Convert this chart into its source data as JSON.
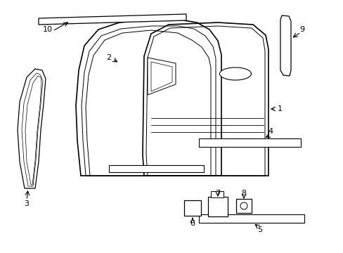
{
  "background_color": "#ffffff",
  "line_color": "#000000",
  "figsize": [
    4.89,
    3.6
  ],
  "dpi": 100,
  "lw_outer": 1.2,
  "lw_inner": 0.7,
  "lw_hatch": 0.4,
  "label_fontsize": 8
}
